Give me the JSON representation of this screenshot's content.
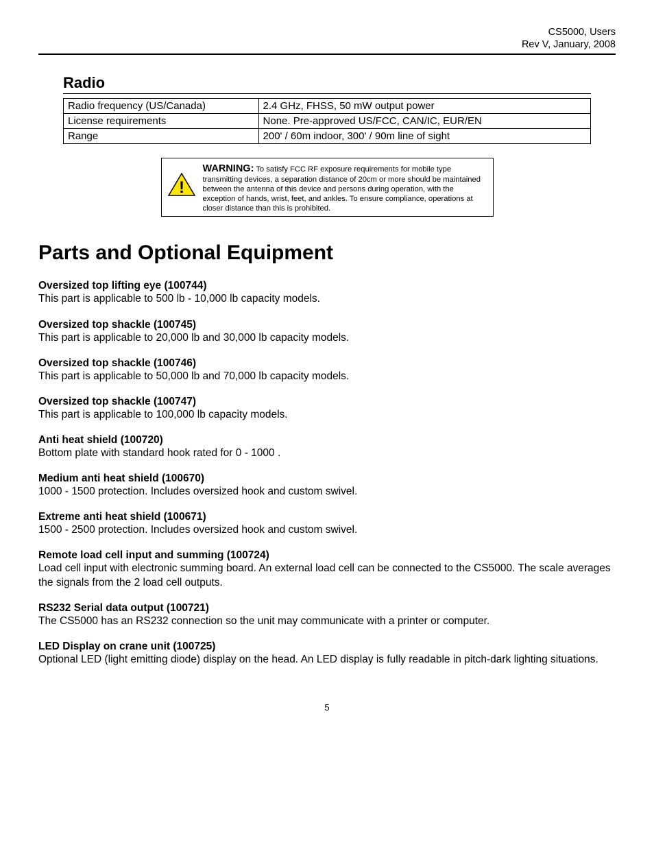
{
  "header": {
    "line1": "CS5000, Users",
    "line2": "Rev V, January, 2008"
  },
  "radio": {
    "heading": "Radio",
    "rows": [
      {
        "label": "Radio frequency (US/Canada)",
        "value": "2.4 GHz, FHSS, 50 mW output power"
      },
      {
        "label": "License requirements",
        "value": "None. Pre-approved US/FCC, CAN/IC, EUR/EN"
      },
      {
        "label": "Range",
        "value": "200' / 60m indoor, 300' / 90m line of sight"
      }
    ]
  },
  "warning": {
    "lead": "WARNING:",
    "body": "To satisfy FCC RF exposure requirements for mobile type transmitting devices, a separation distance of 20cm or more should be maintained between the antenna of this device and persons during operation, with the exception of hands, wrist, feet, and ankles.  To ensure compliance, operations at closer distance than this is prohibited.",
    "icon_fill": "#ffe600",
    "icon_stroke": "#000000"
  },
  "parts": {
    "heading": "Parts and Optional Equipment",
    "items": [
      {
        "title": "Oversized top lifting eye (100744)",
        "desc": "This part is applicable to 500 lb - 10,000 lb capacity models."
      },
      {
        "title": "Oversized top shackle (100745)",
        "desc": "This part is applicable to 20,000 lb and 30,000 lb capacity models."
      },
      {
        "title": "Oversized top shackle (100746)",
        "desc": "This part is applicable to 50,000 lb and 70,000 lb capacity models."
      },
      {
        "title": "Oversized top shackle (100747)",
        "desc": "This part is applicable to 100,000 lb capacity models."
      },
      {
        "title": "Anti heat shield (100720)",
        "desc": "Bottom plate with standard hook rated for 0  - 1000 ."
      },
      {
        "title": "Medium anti heat shield (100670)",
        "desc": "1000  - 1500  protection.  Includes oversized hook and custom swivel."
      },
      {
        "title": "Extreme anti heat shield (100671)",
        "desc": "1500  - 2500  protection.  Includes oversized hook and custom swivel."
      },
      {
        "title": "Remote load cell input and summing (100724)",
        "desc": "Load cell input with electronic summing board.  An external load cell can be connected to the CS5000.  The scale averages the signals from the 2 load cell outputs."
      },
      {
        "title": "RS232 Serial data output (100721)",
        "desc": "The CS5000 has an RS232 connection so the unit may communicate with a printer or computer."
      },
      {
        "title": "LED Display on crane unit (100725)",
        "desc": "Optional LED (light emitting diode) display on the head.  An LED display is fully readable in pitch-dark lighting situations."
      }
    ]
  },
  "page_number": "5"
}
